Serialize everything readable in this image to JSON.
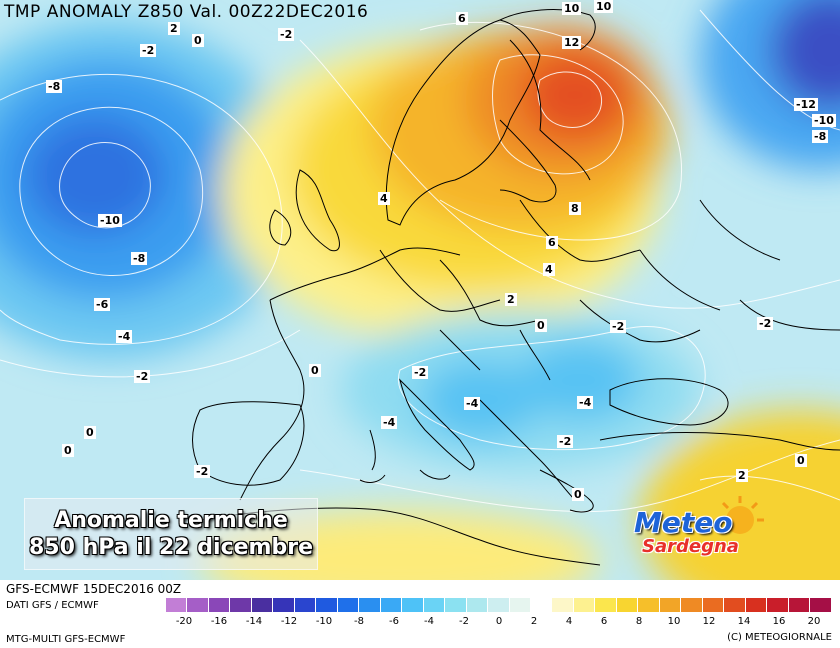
{
  "title": "TMP ANOMALY Z850 Val. 00Z22DEC2016",
  "caption": {
    "line1": "Anomalie termiche",
    "line2": "850 hPa il 22 dicembre"
  },
  "logo": {
    "line1": "Meteo",
    "line2": "Sardegna"
  },
  "footer": {
    "run_info": "GFS-ECMWF 15DEC2016 00Z",
    "source": "DATI GFS / ECMWF",
    "product": "MTG-MULTI GFS-ECMWF",
    "copyright": "(C) METEOGIORNALE"
  },
  "color_scale": {
    "ticks": [
      "-20",
      "-16",
      "-14",
      "-12",
      "-10",
      "-8",
      "-6",
      "-4",
      "-2",
      "0",
      "2",
      "4",
      "6",
      "8",
      "10",
      "12",
      "14",
      "16",
      "20"
    ],
    "colors": [
      "#c27ed6",
      "#a55ec7",
      "#8a47b8",
      "#6e38a8",
      "#4a2fa0",
      "#3634b8",
      "#2a45cf",
      "#1f5ae0",
      "#1f70ea",
      "#2a8ff0",
      "#3aa9f5",
      "#4ec2f7",
      "#6ad3f5",
      "#8be1f1",
      "#ade8ee",
      "#cdeef0",
      "#e6f5ef",
      "#ffffff",
      "#fdf7c8",
      "#fdf190",
      "#fbe64d",
      "#f8d530",
      "#f6bf2a",
      "#f2a527",
      "#ef8a24",
      "#ea6c21",
      "#e24d1f",
      "#d8301f",
      "#c91e2a",
      "#b71538",
      "#a50f46",
      "#ffffff"
    ]
  },
  "contour_labels": [
    {
      "v": "-8"
    },
    {
      "v": "-10"
    },
    {
      "v": "-8"
    },
    {
      "v": "-6"
    },
    {
      "v": "-4"
    },
    {
      "v": "-2"
    },
    {
      "v": "0"
    },
    {
      "v": "0"
    },
    {
      "v": "-2"
    },
    {
      "v": "2"
    },
    {
      "v": "0"
    },
    {
      "v": "-2"
    },
    {
      "v": "6"
    },
    {
      "v": "10"
    },
    {
      "v": "10"
    },
    {
      "v": "12"
    },
    {
      "v": "-12"
    },
    {
      "v": "-10"
    },
    {
      "v": "-8"
    },
    {
      "v": "4"
    },
    {
      "v": "8"
    },
    {
      "v": "6"
    },
    {
      "v": "4"
    },
    {
      "v": "2"
    },
    {
      "v": "0"
    },
    {
      "v": "-2"
    },
    {
      "v": "-2"
    },
    {
      "v": "-2"
    },
    {
      "v": "0"
    },
    {
      "v": "-4"
    },
    {
      "v": "-4"
    },
    {
      "v": "-4"
    },
    {
      "v": "-2"
    },
    {
      "v": "0"
    },
    {
      "v": "2"
    },
    {
      "v": "0"
    }
  ]
}
